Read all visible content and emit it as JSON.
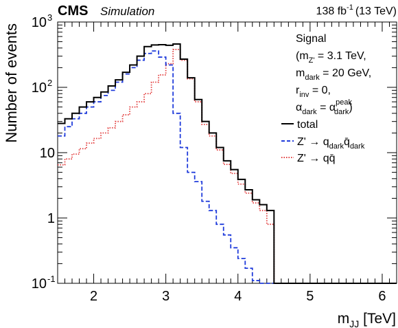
{
  "header": {
    "experiment": "CMS",
    "experiment_sub": "Simulation",
    "lumi": "138 fb",
    "lumi_exp": "-1",
    "energy": "(13 TeV)"
  },
  "legend": {
    "title": "Signal",
    "params": [
      {
        "pre": "(m",
        "sub": "Z'",
        "post": " = 3.1 TeV,"
      },
      {
        "pre": "m",
        "sub": "dark",
        "post": " = 20 GeV,"
      },
      {
        "pre": "r",
        "sub": "inv",
        "post": " = 0,"
      },
      {
        "pre": "α",
        "sub": "dark",
        "mid": " = α",
        "sup2": "peak",
        "sub2": "dark",
        "post": ")"
      }
    ],
    "entries": [
      {
        "label": "total"
      },
      {
        "pre": "Z' → q",
        "sub": "dark",
        "mid": "q̄",
        "sub2": "dark"
      },
      {
        "pre": "Z' → ",
        "mid": "qq̄"
      }
    ]
  },
  "chart_data": {
    "type": "line",
    "style": "step-histogram",
    "xlabel": "m",
    "xlabel_sub": "JJ",
    "xlabel_unit": " [TeV]",
    "ylabel": "Number of events",
    "xlim": [
      1.5,
      6.2
    ],
    "ylim": [
      0.1,
      1000
    ],
    "yscale": "log",
    "grid": false,
    "legend_position": "top-right",
    "x_ticks": [
      "2",
      "3",
      "4",
      "5",
      "6"
    ],
    "y_ticks": [
      {
        "base": "10",
        "exp": "-1",
        "value": 0.1
      },
      {
        "base": "1",
        "exp": "",
        "value": 1
      },
      {
        "base": "10",
        "exp": "",
        "value": 10
      },
      {
        "base": "10",
        "exp": "2",
        "value": 100
      },
      {
        "base": "10",
        "exp": "3",
        "value": 1000
      }
    ],
    "bin_edges": [
      1.5,
      1.6,
      1.7,
      1.8,
      1.9,
      2.0,
      2.1,
      2.2,
      2.3,
      2.4,
      2.5,
      2.6,
      2.7,
      2.8,
      2.9,
      3.0,
      3.1,
      3.2,
      3.3,
      3.4,
      3.5,
      3.6,
      3.7,
      3.8,
      3.9,
      4.0,
      4.1,
      4.2,
      4.3,
      4.4,
      4.5,
      4.6,
      4.7,
      4.8
    ],
    "series": [
      {
        "name": "total",
        "color": "#000000",
        "dash": "solid",
        "values": [
          28,
          33,
          40,
          50,
          60,
          70,
          85,
          105,
          130,
          170,
          220,
          300,
          420,
          445,
          450,
          440,
          460,
          270,
          140,
          65,
          30,
          20,
          12,
          7.5,
          5.5,
          3.9,
          2.7,
          1.9,
          1.6,
          1.3,
          0.08,
          0.08,
          0.08
        ]
      },
      {
        "name": "Z' → q_dark q̄_dark",
        "color": "#1f3bdb",
        "dash": "dashed",
        "values": [
          18,
          25,
          33,
          40,
          50,
          60,
          75,
          90,
          120,
          160,
          200,
          260,
          330,
          360,
          290,
          220,
          40,
          12,
          5,
          3.6,
          1.8,
          1.3,
          0.8,
          0.55,
          0.35,
          0.24,
          0.17,
          0.11,
          0.08,
          0.08,
          0.08,
          0.08,
          0.08
        ]
      },
      {
        "name": "Z' → qq̄",
        "color": "#e23b3b",
        "dash": "dotted",
        "values": [
          6.5,
          8,
          9.5,
          11.5,
          14,
          16.5,
          20,
          24,
          30,
          38,
          50,
          60,
          80,
          120,
          155,
          230,
          380,
          260,
          135,
          60,
          27,
          18,
          11,
          6.6,
          4.8,
          3.3,
          2.4,
          1.7,
          1.3,
          0.8,
          0.08,
          0.08,
          0.08
        ]
      }
    ]
  }
}
